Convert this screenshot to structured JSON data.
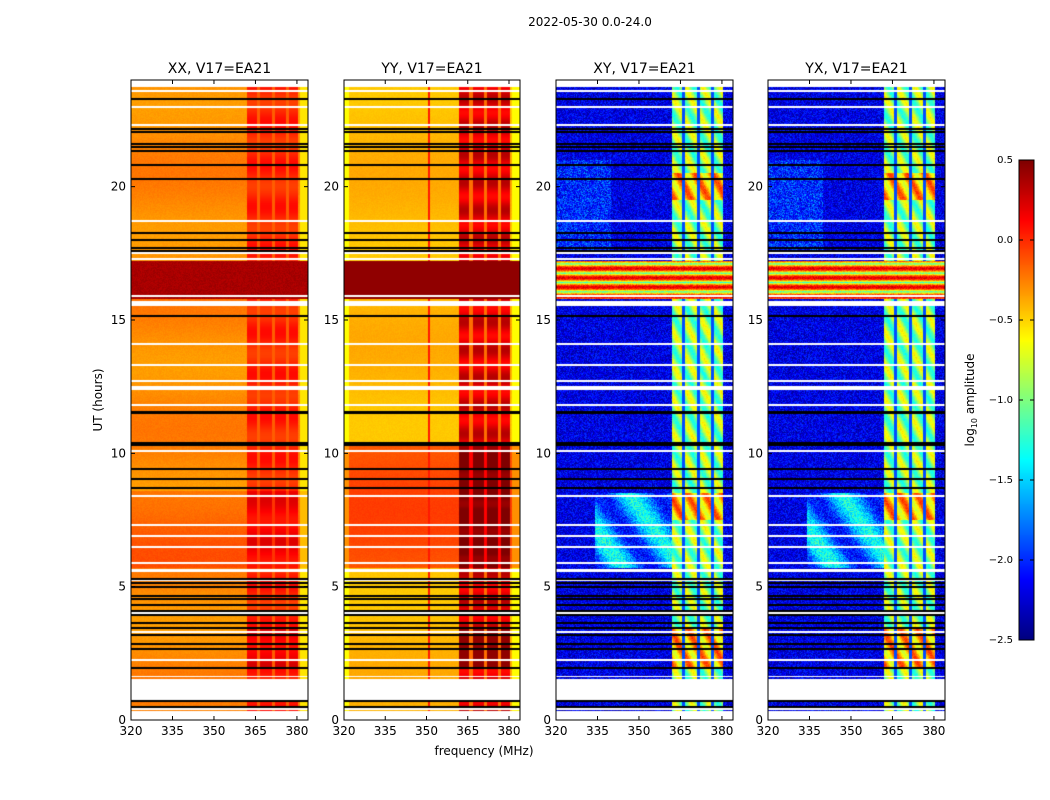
{
  "chart_data": {
    "type": "heatmap",
    "title": "2022-05-30 0.0-24.0",
    "xlabel": "frequency (MHz)",
    "ylabel": "UT (hours)",
    "xlim": [
      320,
      384
    ],
    "ylim": [
      0,
      24
    ],
    "xticks": [
      320,
      335,
      350,
      365,
      380
    ],
    "yticks": [
      0,
      5,
      10,
      15,
      20
    ],
    "panels": [
      {
        "title": "XX, V17=EA21",
        "pol": "XX"
      },
      {
        "title": "YY, V17=EA21",
        "pol": "YY"
      },
      {
        "title": "XY, V17=EA21",
        "pol": "XY"
      },
      {
        "title": "YX, V17=EA21",
        "pol": "YX"
      }
    ],
    "colorbar": {
      "label_main": "log",
      "label_sub": "10",
      "label_rest": " amplitude",
      "range": [
        -2.5,
        0.5
      ],
      "ticks": [
        "0.5",
        "0.0",
        "−0.5",
        "−1.0",
        "−1.5",
        "−2.0",
        "−2.5"
      ],
      "tick_values": [
        0.5,
        0.0,
        -0.5,
        -1.0,
        -1.5,
        -2.0,
        -2.5
      ],
      "colormap": "jet"
    },
    "gap_hours": [
      [
        0,
        0.35
      ],
      [
        0.75,
        1.55
      ],
      [
        1.6,
        1.66
      ],
      [
        5.55,
        5.68
      ],
      [
        15.52,
        15.7
      ],
      [
        23.75,
        24
      ]
    ],
    "flagged_hours": [
      0.5,
      0.7,
      1.95,
      2.65,
      2.85,
      3.2,
      3.45,
      3.65,
      3.95,
      4.1,
      4.3,
      4.55,
      4.65,
      5.0,
      5.15,
      5.3,
      8.7,
      9.05,
      9.4,
      10.3,
      10.38,
      11.5,
      11.56,
      15.15,
      17.6,
      17.7,
      18.0,
      18.25,
      20.3,
      20.8,
      21.35,
      21.5,
      21.6,
      22.05,
      22.15,
      23.3
    ],
    "blank_hours": [
      0.4,
      2.25,
      3.3,
      4.0,
      5.25,
      5.9,
      6.5,
      6.9,
      7.3,
      8.4,
      10.1,
      11.8,
      12.4,
      12.5,
      12.7,
      13.3,
      14.1,
      15.9,
      17.3,
      17.5,
      18.7,
      22.3,
      23.0,
      23.6
    ]
  }
}
